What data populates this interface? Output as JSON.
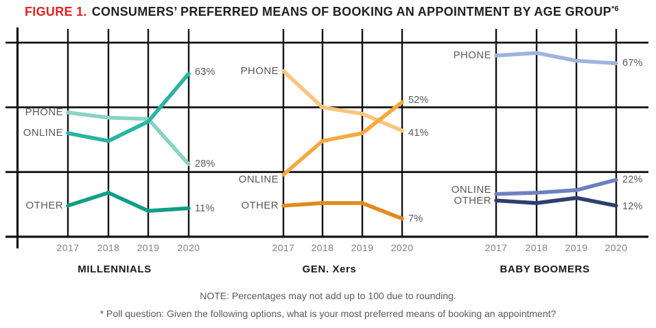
{
  "title": {
    "prefix": "FIGURE 1.",
    "main": "CONSUMERS’ PREFERRED MEANS OF BOOKING AN APPOINTMENT BY AGE GROUP",
    "superscript": "*6"
  },
  "notes": {
    "note": "NOTE: Percentages may not add up to 100 due to rounding.",
    "poll_question": "* Poll question: Given the following options, what is your most preferred means of booking an appointment?"
  },
  "colors": {
    "figure_label_red": "#e32127",
    "title_text": "#231f20",
    "grid": "#111111",
    "label_gray": "#595a5c",
    "year_gray": "#7e8083"
  },
  "chart_data": {
    "type": "line",
    "x": [
      "2017",
      "2018",
      "2019",
      "2020"
    ],
    "ylim": [
      0,
      87
    ],
    "gridline_values_pct": [
      0,
      25,
      50,
      75
    ],
    "grid": true,
    "legend_position": "inline-left-of-first-point",
    "panels": [
      {
        "title": "MILLENNIALS",
        "series": [
          {
            "name": "PHONE",
            "color": "#8ad3c4",
            "values": [
              48,
              46,
              45.5,
              28
            ],
            "end_label": "28%"
          },
          {
            "name": "ONLINE",
            "color": "#2bb4a2",
            "values": [
              40,
              37,
              44.5,
              63
            ],
            "end_label": "63%"
          },
          {
            "name": "OTHER",
            "color": "#129e85",
            "values": [
              12,
              17,
              10,
              11
            ],
            "end_label": "11%"
          }
        ]
      },
      {
        "title": "GEN. Xers",
        "series": [
          {
            "name": "PHONE",
            "color": "#fac57f",
            "values": [
              64,
              50,
              47.5,
              41
            ],
            "end_label": "41%"
          },
          {
            "name": "ONLINE",
            "color": "#f7a93d",
            "values": [
              24,
              37,
              40,
              52
            ],
            "end_label": "52%"
          },
          {
            "name": "OTHER",
            "color": "#e18a1e",
            "values": [
              12,
              13,
              13,
              7
            ],
            "end_label": "7%"
          }
        ]
      },
      {
        "title": "BABY BOOMERS",
        "series": [
          {
            "name": "PHONE",
            "color": "#a0b3df",
            "values": [
              70,
              71,
              68,
              67
            ],
            "end_label": "67%"
          },
          {
            "name": "ONLINE",
            "color": "#6d81c1",
            "values": [
              16.5,
              17,
              18,
              22
            ],
            "end_label": "22%"
          },
          {
            "name": "OTHER",
            "color": "#2d3e6f",
            "values": [
              14,
              13,
              15,
              12
            ],
            "end_label": "12%"
          }
        ]
      }
    ]
  }
}
